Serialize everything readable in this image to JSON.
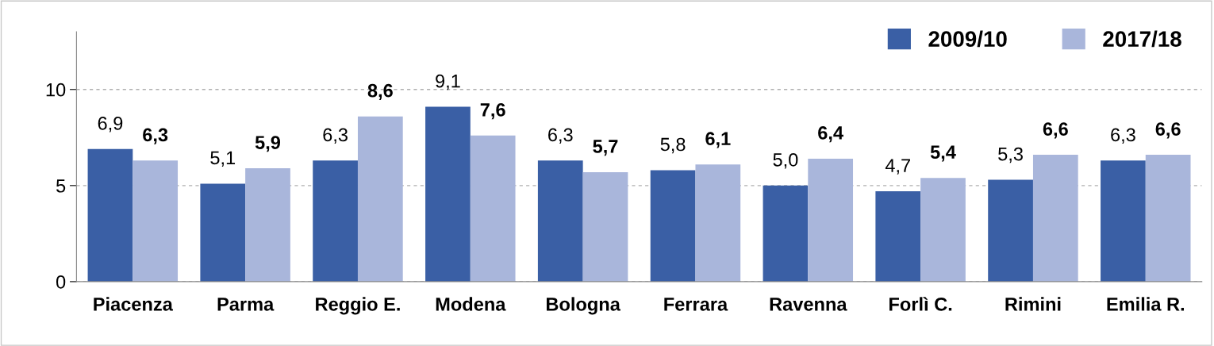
{
  "chart_data": {
    "type": "bar",
    "categories": [
      "Piacenza",
      "Parma",
      "Reggio E.",
      "Modena",
      "Bologna",
      "Ferrara",
      "Ravenna",
      "Forlì C.",
      "Rimini",
      "Emilia R."
    ],
    "series": [
      {
        "name": "2009/10",
        "color": "#3a5fa5",
        "values": [
          6.9,
          5.1,
          6.3,
          9.1,
          6.3,
          5.8,
          5.0,
          4.7,
          5.3,
          6.3
        ],
        "value_labels": [
          "6,9",
          "5,1",
          "6,3",
          "9,1",
          "6,3",
          "5,8",
          "5,0",
          "4,7",
          "5,3",
          "6,3"
        ]
      },
      {
        "name": "2017/18",
        "color": "#a9b6db",
        "values": [
          6.3,
          5.9,
          8.6,
          7.6,
          5.7,
          6.1,
          6.4,
          5.4,
          6.6,
          6.6
        ],
        "value_labels": [
          "6,3",
          "5,9",
          "8,6",
          "7,6",
          "5,7",
          "6,1",
          "6,4",
          "5,4",
          "6,6",
          "6,6"
        ]
      }
    ],
    "ylim": [
      0,
      13
    ],
    "yticks": [
      0,
      5,
      10
    ],
    "grid": "y",
    "legend": "top right"
  }
}
